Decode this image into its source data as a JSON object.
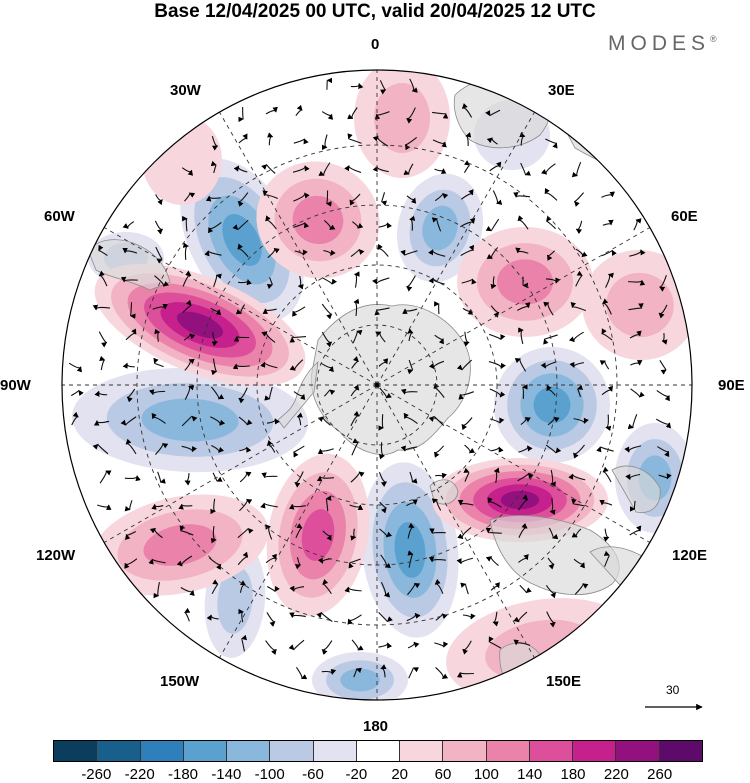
{
  "title": "Base 12/04/2025 00 UTC, valid 20/04/2025 12 UTC",
  "brand": {
    "text": "MODES",
    "mark": "®"
  },
  "longitude_labels": {
    "lon_0": "0",
    "lon_30e": "30E",
    "lon_60e": "60E",
    "lon_90e": "90E",
    "lon_120e": "120E",
    "lon_150e": "150E",
    "lon_180": "180",
    "lon_150w": "150W",
    "lon_120w": "120W",
    "lon_90w": "90W",
    "lon_60w": "60W",
    "lon_30w": "30W"
  },
  "reference_vector": {
    "label": "30"
  },
  "colorbar": {
    "colors": [
      "#0b3d5c",
      "#195f8c",
      "#2f7fbd",
      "#5aa1d0",
      "#8ab8dd",
      "#bac9e4",
      "#e2e2f0",
      "#ffffff",
      "#f7d7dd",
      "#f2b3c4",
      "#ea82aa",
      "#dd4f9a",
      "#c5208c",
      "#93107f",
      "#5d0a6b"
    ],
    "ticks": [
      "-260",
      "-220",
      "-180",
      "-140",
      "-100",
      "-60",
      "-20",
      "20",
      "60",
      "100",
      "140",
      "180",
      "220",
      "260"
    ]
  },
  "anomaly_centers": [
    {
      "name": "neg-center-30w",
      "value": -160
    },
    {
      "name": "neg-center-65w",
      "value": -100
    },
    {
      "name": "neg-center-100w",
      "value": -140
    },
    {
      "name": "neg-center-140w",
      "value": -100
    },
    {
      "name": "neg-center-175e",
      "value": -120
    },
    {
      "name": "neg-center-160e",
      "value": -180
    },
    {
      "name": "neg-center-95e",
      "value": -180
    },
    {
      "name": "neg-center-110e",
      "value": -140
    },
    {
      "name": "neg-center-30e",
      "value": -140
    },
    {
      "name": "neg-center-5e",
      "value": -60
    },
    {
      "name": "pos-center-75w",
      "value": 260
    },
    {
      "name": "pos-center-120e",
      "value": 240
    },
    {
      "name": "pos-center-60e",
      "value": 140
    },
    {
      "name": "pos-center-70e",
      "value": 100
    },
    {
      "name": "pos-center-15w",
      "value": 140
    },
    {
      "name": "pos-center-0",
      "value": 100
    },
    {
      "name": "pos-center-130w",
      "value": 140
    },
    {
      "name": "pos-center-160w",
      "value": 180
    },
    {
      "name": "pos-center-150e",
      "value": 100
    },
    {
      "name": "pos-center-45w",
      "value": 60
    }
  ]
}
